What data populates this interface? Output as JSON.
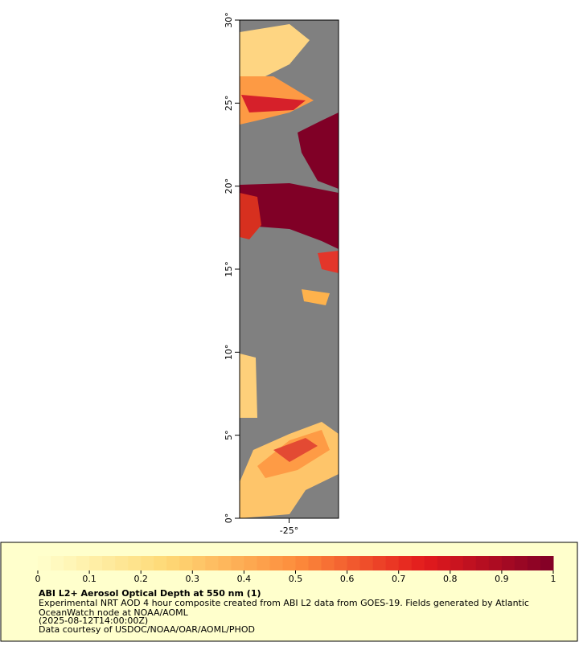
{
  "map": {
    "xlim": [
      -28,
      -22
    ],
    "ylim": [
      0,
      30
    ],
    "xticks": [
      {
        "value": -25,
        "label": "-25°"
      }
    ],
    "yticks": [
      {
        "value": 0,
        "label": "0°"
      },
      {
        "value": 5,
        "label": "5°"
      },
      {
        "value": 10,
        "label": "10°"
      },
      {
        "value": 15,
        "label": "15°"
      },
      {
        "value": 20,
        "label": "20°"
      },
      {
        "value": 25,
        "label": "25°"
      },
      {
        "value": 30,
        "label": "30°"
      }
    ]
  },
  "colorbar": {
    "lim": [
      0,
      1
    ],
    "ticks": [
      0,
      0.1,
      0.2,
      0.3,
      0.4,
      0.5,
      0.6,
      0.7,
      0.8,
      0.9,
      1
    ]
  },
  "caption": {
    "title": "ABI L2+ Aerosol Optical Depth at 550 nm (1)",
    "lines": [
      "Experimental NRT AOD 4 hour composite created from ABI L2 data from GOES-19. Fields generated by Atlantic",
      "OceanWatch node at NOAA/AOML",
      "(2025-08-12T14:00:00Z)",
      "Data courtesy of USDOC/NOAA/OAR/AOML/PHOD"
    ]
  }
}
